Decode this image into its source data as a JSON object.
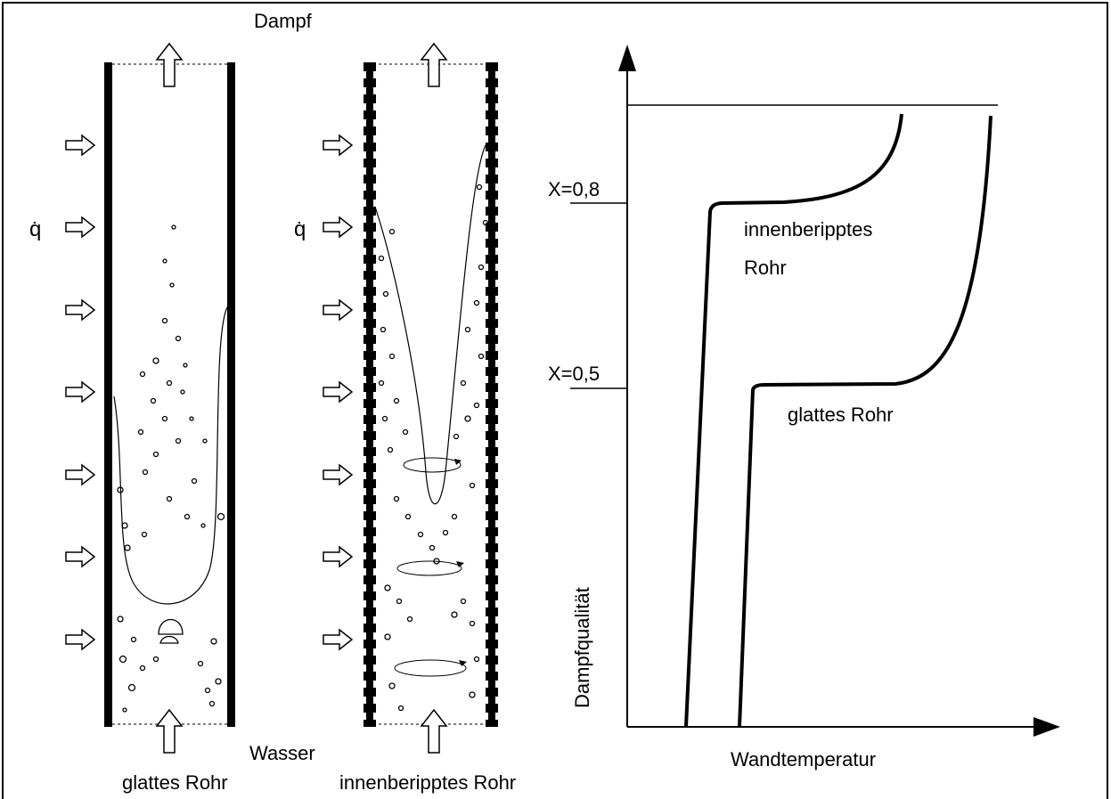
{
  "tubes": {
    "steam": "Dampf",
    "water": "Wasser",
    "heat_flux_left": "q̇",
    "heat_flux_right": "q̇",
    "smooth_tube": "glattes Rohr",
    "ribbed_tube": "innenberipptes Rohr"
  },
  "graph": {
    "x_axis_label": "Wandtemperatur",
    "y_axis_label": "Dampfqualität",
    "level_high": "X=0,8",
    "level_low": "X=0,5",
    "ribbed_curve_label_line1": "innenberipptes",
    "ribbed_curve_label_line2": "Rohr",
    "smooth_curve_label": "glattes Rohr"
  }
}
